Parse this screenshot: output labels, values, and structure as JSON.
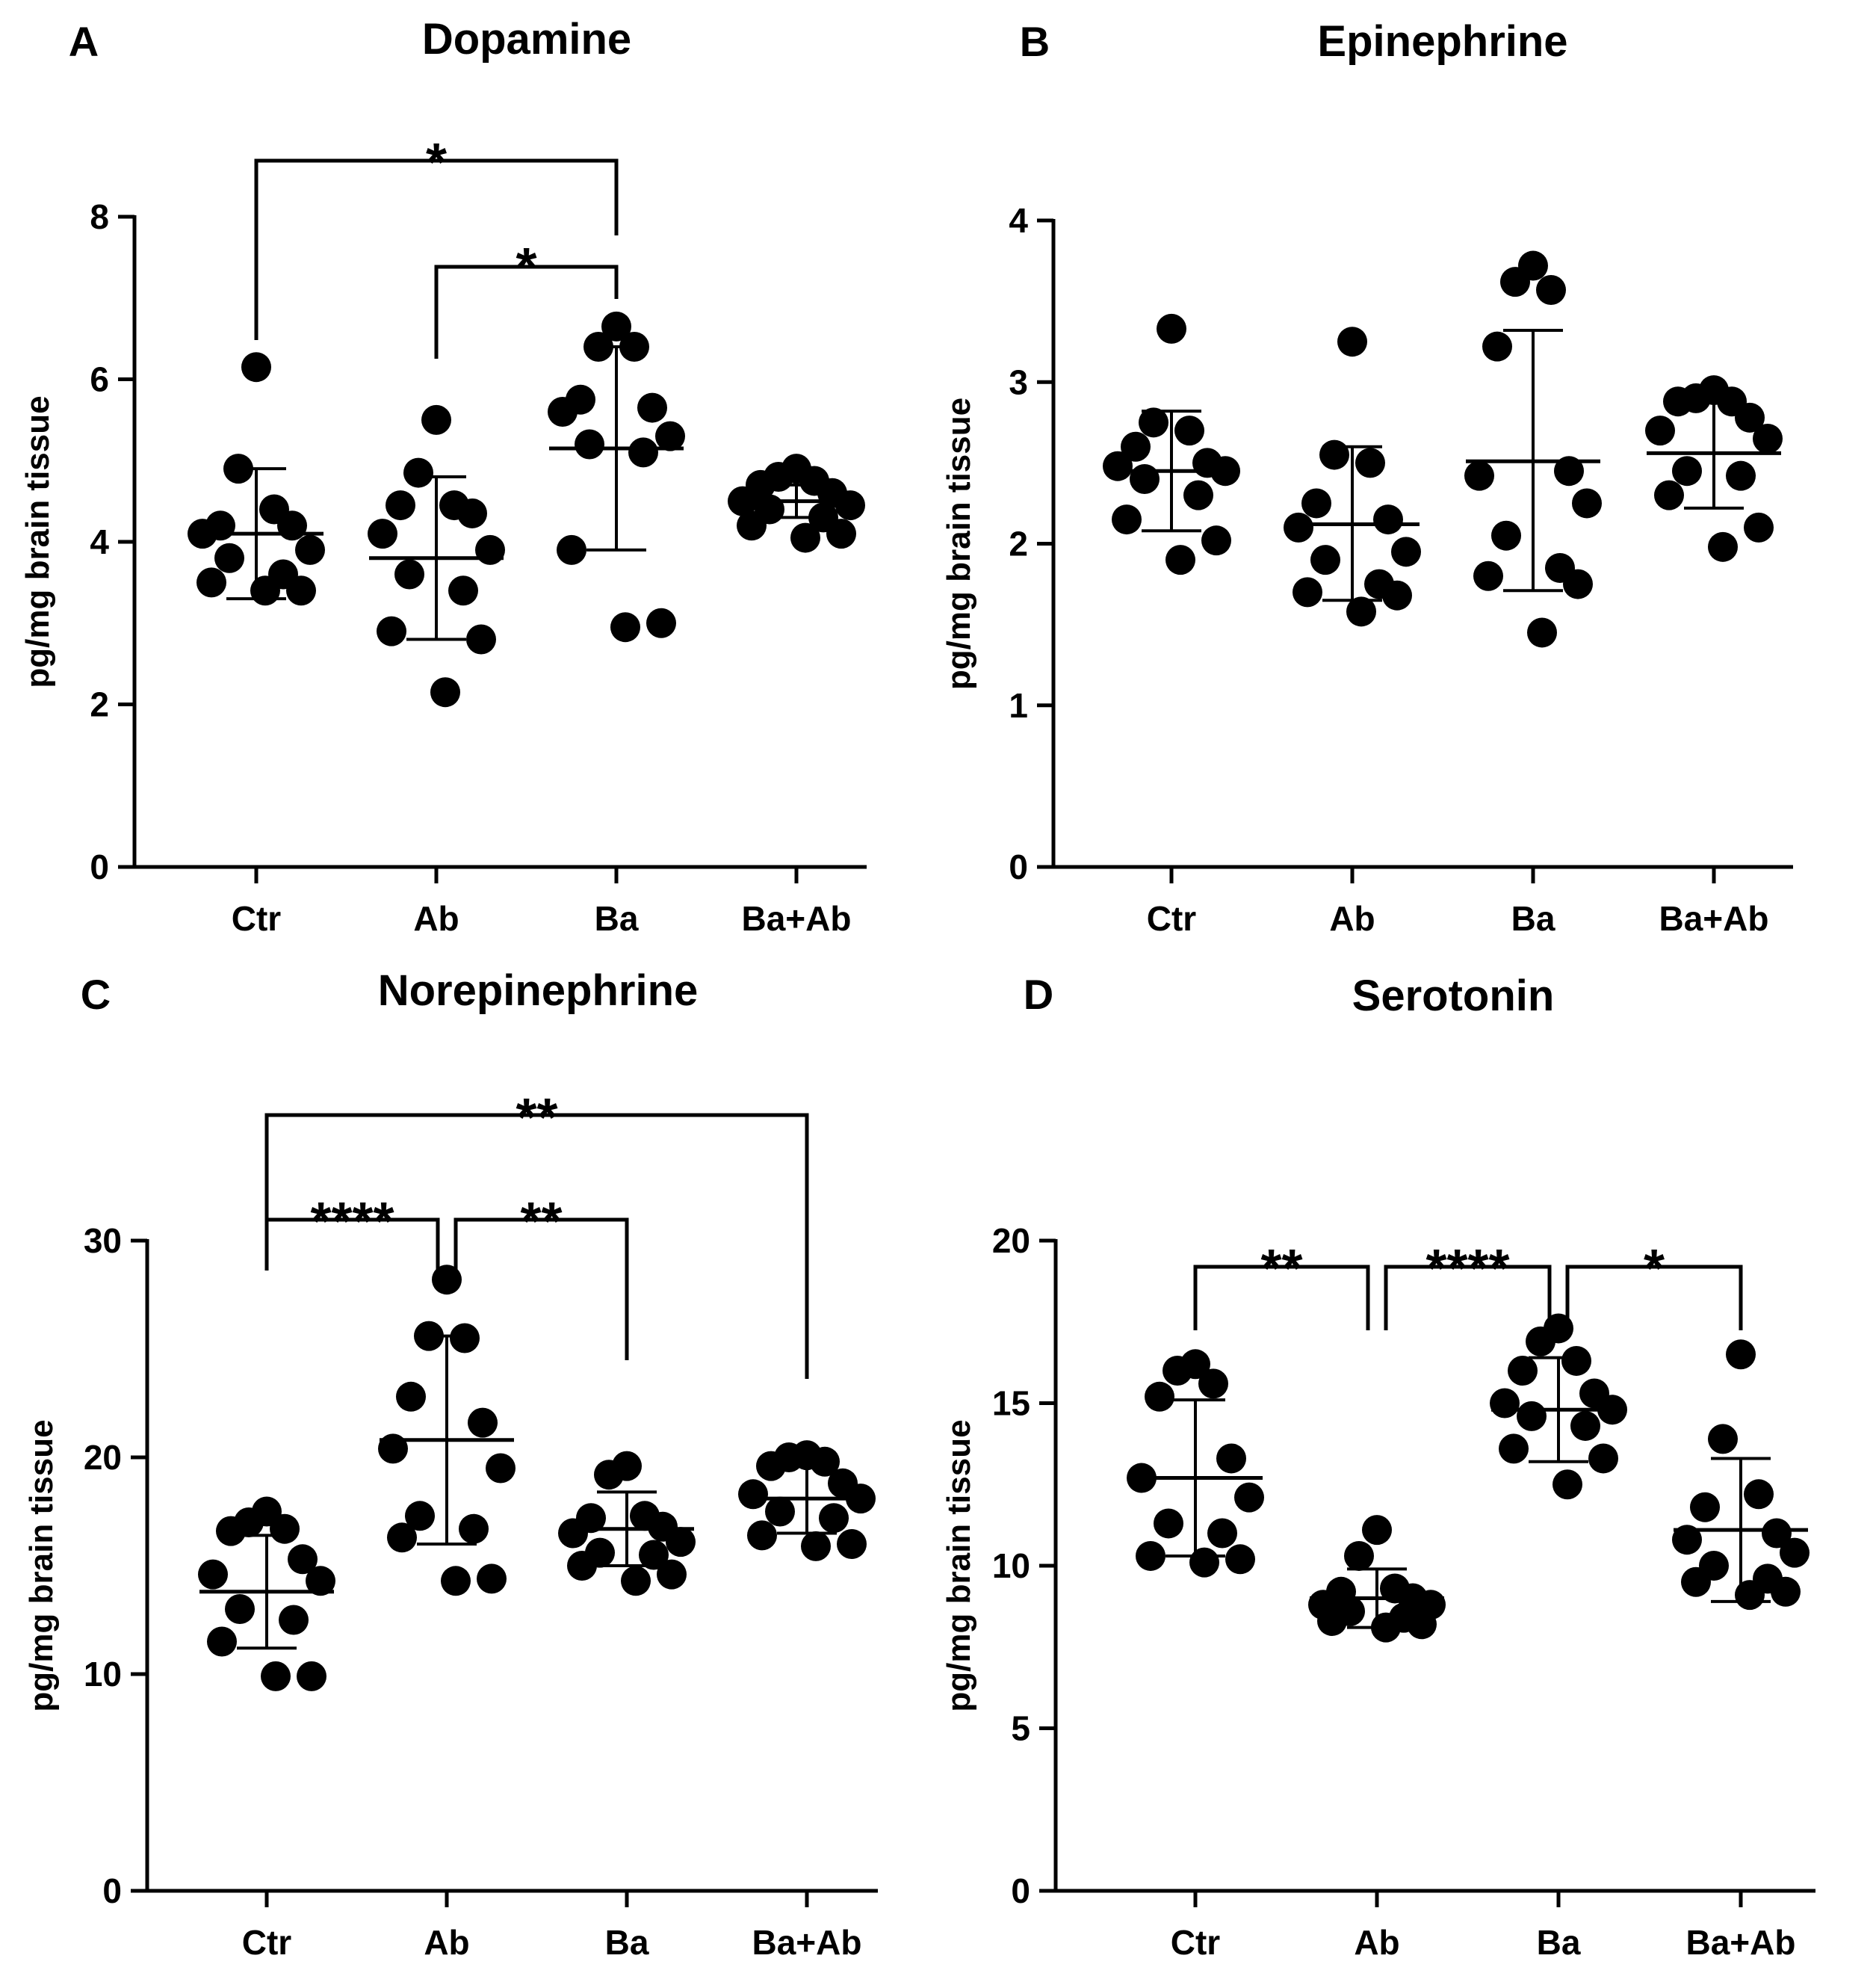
{
  "chart_data": [
    {
      "type": "scatter",
      "panel": "A",
      "title": "Dopamine",
      "ylabel": "pg/mg brain tissue",
      "ylim": [
        0,
        8
      ],
      "yticks": [
        0,
        2,
        4,
        6,
        8
      ],
      "categories": [
        "Ctr",
        "Ab",
        "Ba",
        "Ba+Ab"
      ],
      "groups": [
        {
          "name": "Ctr",
          "mean": 4.1,
          "sd_low": 3.3,
          "sd_high": 4.9,
          "points": [
            6.15,
            4.9,
            4.4,
            4.2,
            4.2,
            4.1,
            3.9,
            3.8,
            3.6,
            3.5,
            3.4,
            3.4
          ]
        },
        {
          "name": "Ab",
          "mean": 3.8,
          "sd_low": 2.8,
          "sd_high": 4.8,
          "points": [
            5.5,
            4.85,
            4.45,
            4.45,
            4.35,
            4.1,
            3.9,
            3.6,
            3.4,
            2.9,
            2.8,
            2.15
          ]
        },
        {
          "name": "Ba",
          "mean": 5.15,
          "sd_low": 3.9,
          "sd_high": 6.4,
          "points": [
            6.65,
            6.4,
            6.4,
            5.75,
            5.65,
            5.6,
            5.3,
            5.2,
            5.1,
            3.9,
            3.0,
            2.95
          ]
        },
        {
          "name": "Ba+Ab",
          "mean": 4.5,
          "sd_low": 4.3,
          "sd_high": 4.7,
          "points": [
            4.9,
            4.8,
            4.75,
            4.7,
            4.6,
            4.5,
            4.45,
            4.4,
            4.3,
            4.2,
            4.1,
            4.05
          ]
        }
      ],
      "significance": [
        {
          "from": "Ctr",
          "to": "Ba",
          "label": "*"
        },
        {
          "from": "Ab",
          "to": "Ba",
          "label": "*"
        }
      ]
    },
    {
      "type": "scatter",
      "panel": "B",
      "title": "Epinephrine",
      "ylabel": "pg/mg brain tissue",
      "ylim": [
        0,
        4
      ],
      "yticks": [
        0,
        1,
        2,
        3,
        4
      ],
      "categories": [
        "Ctr",
        "Ab",
        "Ba",
        "Ba+Ab"
      ],
      "groups": [
        {
          "name": "Ctr",
          "mean": 2.45,
          "sd_low": 2.08,
          "sd_high": 2.82,
          "points": [
            3.33,
            2.75,
            2.7,
            2.6,
            2.5,
            2.48,
            2.45,
            2.4,
            2.3,
            2.15,
            2.02,
            1.9
          ]
        },
        {
          "name": "Ab",
          "mean": 2.12,
          "sd_low": 1.65,
          "sd_high": 2.6,
          "points": [
            3.25,
            2.55,
            2.5,
            2.25,
            2.15,
            2.1,
            1.95,
            1.9,
            1.75,
            1.7,
            1.68,
            1.58
          ]
        },
        {
          "name": "Ba",
          "mean": 2.51,
          "sd_low": 1.71,
          "sd_high": 3.32,
          "points": [
            3.72,
            3.62,
            3.57,
            3.22,
            2.45,
            2.42,
            2.25,
            2.05,
            1.85,
            1.8,
            1.75,
            1.45
          ]
        },
        {
          "name": "Ba+Ab",
          "mean": 2.56,
          "sd_low": 2.22,
          "sd_high": 2.9,
          "points": [
            2.95,
            2.9,
            2.88,
            2.88,
            2.78,
            2.7,
            2.65,
            2.45,
            2.42,
            2.3,
            2.1,
            1.98
          ]
        }
      ],
      "significance": []
    },
    {
      "type": "scatter",
      "panel": "C",
      "title": "Norepinephrine",
      "ylabel": "pg/mg brain tissue",
      "ylim": [
        0,
        30
      ],
      "yticks": [
        0,
        10,
        20,
        30
      ],
      "categories": [
        "Ctr",
        "Ab",
        "Ba",
        "Ba+Ab"
      ],
      "groups": [
        {
          "name": "Ctr",
          "mean": 13.8,
          "sd_low": 11.2,
          "sd_high": 16.4,
          "points": [
            17.5,
            17.0,
            16.7,
            16.6,
            15.3,
            14.6,
            14.3,
            13.0,
            12.5,
            11.5,
            9.9,
            9.9
          ]
        },
        {
          "name": "Ab",
          "mean": 20.8,
          "sd_low": 16.0,
          "sd_high": 25.6,
          "points": [
            28.2,
            25.6,
            25.5,
            22.8,
            21.6,
            20.4,
            19.5,
            17.3,
            16.7,
            16.3,
            14.4,
            14.3
          ]
        },
        {
          "name": "Ba",
          "mean": 16.7,
          "sd_low": 15.0,
          "sd_high": 18.4,
          "points": [
            19.6,
            19.2,
            17.3,
            17.2,
            16.8,
            16.5,
            16.1,
            15.6,
            15.5,
            15.0,
            14.6,
            14.3
          ]
        },
        {
          "name": "Ba+Ab",
          "mean": 18.1,
          "sd_low": 16.5,
          "sd_high": 19.7,
          "points": [
            20.1,
            20.0,
            19.8,
            19.6,
            18.8,
            18.3,
            18.1,
            17.5,
            17.2,
            16.4,
            16.0,
            15.9
          ]
        }
      ],
      "significance": [
        {
          "from": "Ctr",
          "to": "Ba+Ab",
          "label": "**"
        },
        {
          "from": "Ctr",
          "to": "Ab",
          "label": "****"
        },
        {
          "from": "Ab",
          "to": "Ba",
          "label": "**"
        }
      ]
    },
    {
      "type": "scatter",
      "panel": "D",
      "title": "Serotonin",
      "ylabel": "pg/mg brain tissue",
      "ylim": [
        0,
        20
      ],
      "yticks": [
        0,
        5,
        10,
        15,
        20
      ],
      "categories": [
        "Ctr",
        "Ab",
        "Ba",
        "Ba+Ab"
      ],
      "groups": [
        {
          "name": "Ctr",
          "mean": 12.7,
          "sd_low": 10.3,
          "sd_high": 15.1,
          "points": [
            16.2,
            16.0,
            15.6,
            15.2,
            13.3,
            12.7,
            12.1,
            11.3,
            11.0,
            10.3,
            10.2,
            10.1
          ]
        },
        {
          "name": "Ab",
          "mean": 9.0,
          "sd_low": 8.1,
          "sd_high": 9.9,
          "points": [
            11.1,
            10.3,
            9.3,
            9.2,
            9.0,
            8.8,
            8.8,
            8.6,
            8.4,
            8.3,
            8.2,
            8.1
          ]
        },
        {
          "name": "Ba",
          "mean": 14.8,
          "sd_low": 13.2,
          "sd_high": 16.4,
          "points": [
            17.3,
            16.9,
            16.3,
            16.0,
            15.3,
            15.0,
            14.8,
            14.6,
            14.3,
            13.6,
            13.3,
            12.5
          ]
        },
        {
          "name": "Ba+Ab",
          "mean": 11.1,
          "sd_low": 8.9,
          "sd_high": 13.3,
          "points": [
            16.5,
            13.9,
            12.2,
            11.8,
            11.0,
            10.8,
            10.4,
            10.0,
            9.6,
            9.5,
            9.2,
            9.1
          ]
        }
      ],
      "significance": [
        {
          "from": "Ctr",
          "to": "Ab",
          "label": "**"
        },
        {
          "from": "Ab",
          "to": "Ba",
          "label": "****"
        },
        {
          "from": "Ba",
          "to": "Ba+Ab",
          "label": "*"
        }
      ]
    }
  ]
}
